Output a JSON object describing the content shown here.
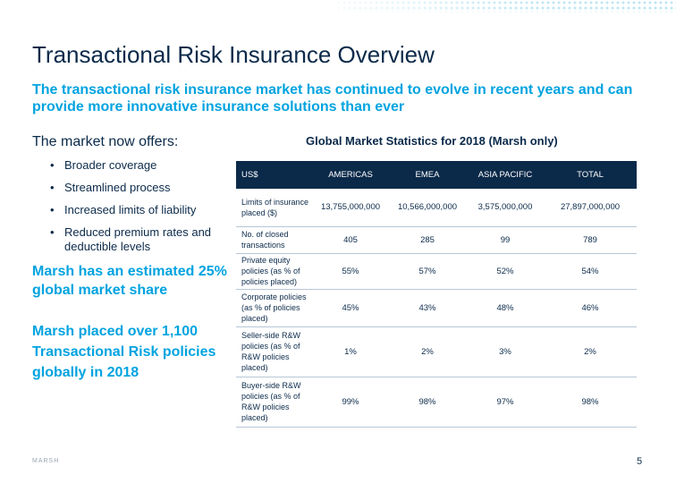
{
  "slide": {
    "title": "Transactional Risk Insurance Overview",
    "subtitle": "The transactional risk insurance market has continued to evolve in recent years and can provide more innovative insurance solutions than ever",
    "offers_heading": "The market now offers:",
    "offers": [
      "Broader coverage",
      "Streamlined process",
      "Increased limits of liability",
      "Reduced premium rates and deductible levels"
    ],
    "market_share": "Marsh has an estimated 25% global market share",
    "policies_placed": "Marsh placed over 1,100 Transactional Risk policies globally in 2018",
    "footer_logo": "MARSH",
    "page_number": "5"
  },
  "table": {
    "title": "Global Market Statistics for 2018 (Marsh only)",
    "headers": [
      "US$",
      "AMERICAS",
      "EMEA",
      "ASIA PACIFIC",
      "TOTAL"
    ],
    "rows": [
      {
        "label": "Limits of insurance placed ($)",
        "americas": "13,755,000,000",
        "emea": "10,566,000,000",
        "apac": "3,575,000,000",
        "total": "27,897,000,000"
      },
      {
        "label": "No. of closed transactions",
        "americas": "405",
        "emea": "285",
        "apac": "99",
        "total": "789"
      },
      {
        "label": "Private equity policies (as % of policies placed)",
        "americas": "55%",
        "emea": "57%",
        "apac": "52%",
        "total": "54%"
      },
      {
        "label": "Corporate policies (as % of policies placed)",
        "americas": "45%",
        "emea": "43%",
        "apac": "48%",
        "total": "46%"
      },
      {
        "label": "Seller-side R&W policies (as % of R&W policies placed)",
        "americas": "1%",
        "emea": "2%",
        "apac": "3%",
        "total": "2%"
      },
      {
        "label": "Buyer-side R&W policies (as % of R&W policies placed)",
        "americas": "99%",
        "emea": "98%",
        "apac": "97%",
        "total": "98%"
      }
    ]
  },
  "colors": {
    "navy": "#0b2a4a",
    "accent_blue": "#00a3e0",
    "header_bg": "#0b2a4a"
  }
}
